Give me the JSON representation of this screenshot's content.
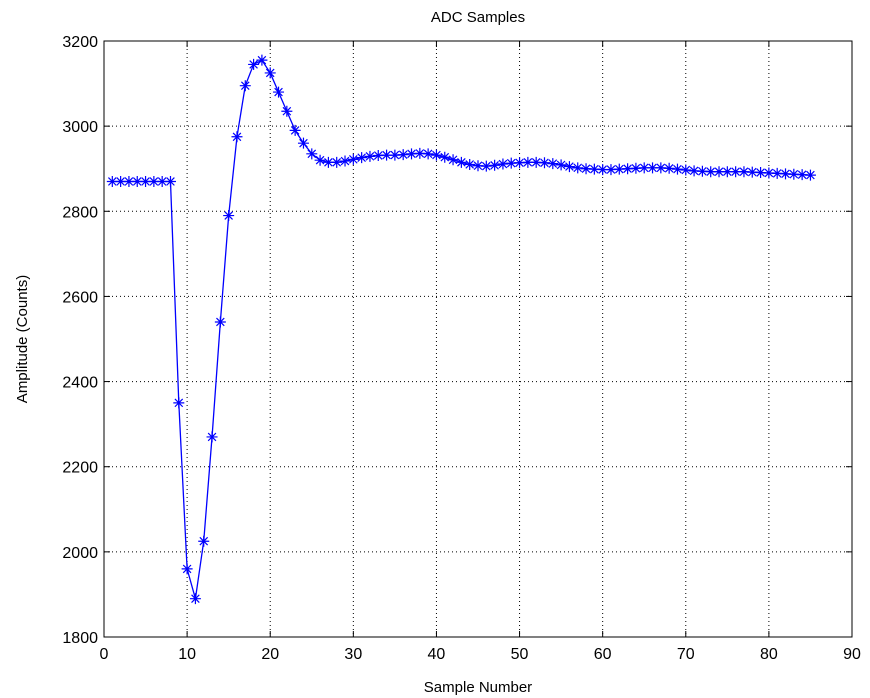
{
  "chart_data": {
    "type": "line",
    "title": "ADC Samples",
    "xlabel": "Sample Number",
    "ylabel": "Amplitude (Counts)",
    "xlim": [
      0,
      90
    ],
    "ylim": [
      1800,
      3200
    ],
    "xticks": [
      0,
      10,
      20,
      30,
      40,
      50,
      60,
      70,
      80,
      90
    ],
    "yticks": [
      1800,
      2000,
      2200,
      2400,
      2600,
      2800,
      3000,
      3200
    ],
    "grid": true,
    "marker": "*",
    "series": [
      {
        "color": "#0000ff",
        "x": [
          1,
          2,
          3,
          4,
          5,
          6,
          7,
          8,
          9,
          10,
          11,
          12,
          13,
          14,
          15,
          16,
          17,
          18,
          19,
          20,
          21,
          22,
          23,
          24,
          25,
          26,
          27,
          28,
          29,
          30,
          31,
          32,
          33,
          34,
          35,
          36,
          37,
          38,
          39,
          40,
          41,
          42,
          43,
          44,
          45,
          46,
          47,
          48,
          49,
          50,
          51,
          52,
          53,
          54,
          55,
          56,
          57,
          58,
          59,
          60,
          61,
          62,
          63,
          64,
          65,
          66,
          67,
          68,
          69,
          70,
          71,
          72,
          73,
          74,
          75,
          76,
          77,
          78,
          79,
          80,
          81,
          82,
          83,
          84,
          85
        ],
        "y": [
          2870,
          2870,
          2870,
          2870,
          2870,
          2870,
          2870,
          2870,
          2350,
          1960,
          1890,
          2025,
          2270,
          2540,
          2790,
          2975,
          3095,
          3145,
          3155,
          3125,
          3080,
          3035,
          2990,
          2960,
          2935,
          2920,
          2915,
          2915,
          2918,
          2922,
          2926,
          2929,
          2931,
          2932,
          2932,
          2933,
          2935,
          2936,
          2935,
          2932,
          2927,
          2921,
          2915,
          2910,
          2907,
          2906,
          2908,
          2911,
          2913,
          2914,
          2915,
          2915,
          2914,
          2912,
          2909,
          2905,
          2902,
          2900,
          2899,
          2898,
          2898,
          2899,
          2900,
          2901,
          2902,
          2902,
          2902,
          2901,
          2899,
          2897,
          2895,
          2894,
          2893,
          2893,
          2893,
          2893,
          2893,
          2892,
          2891,
          2890,
          2889,
          2888,
          2887,
          2886,
          2885
        ]
      }
    ]
  }
}
